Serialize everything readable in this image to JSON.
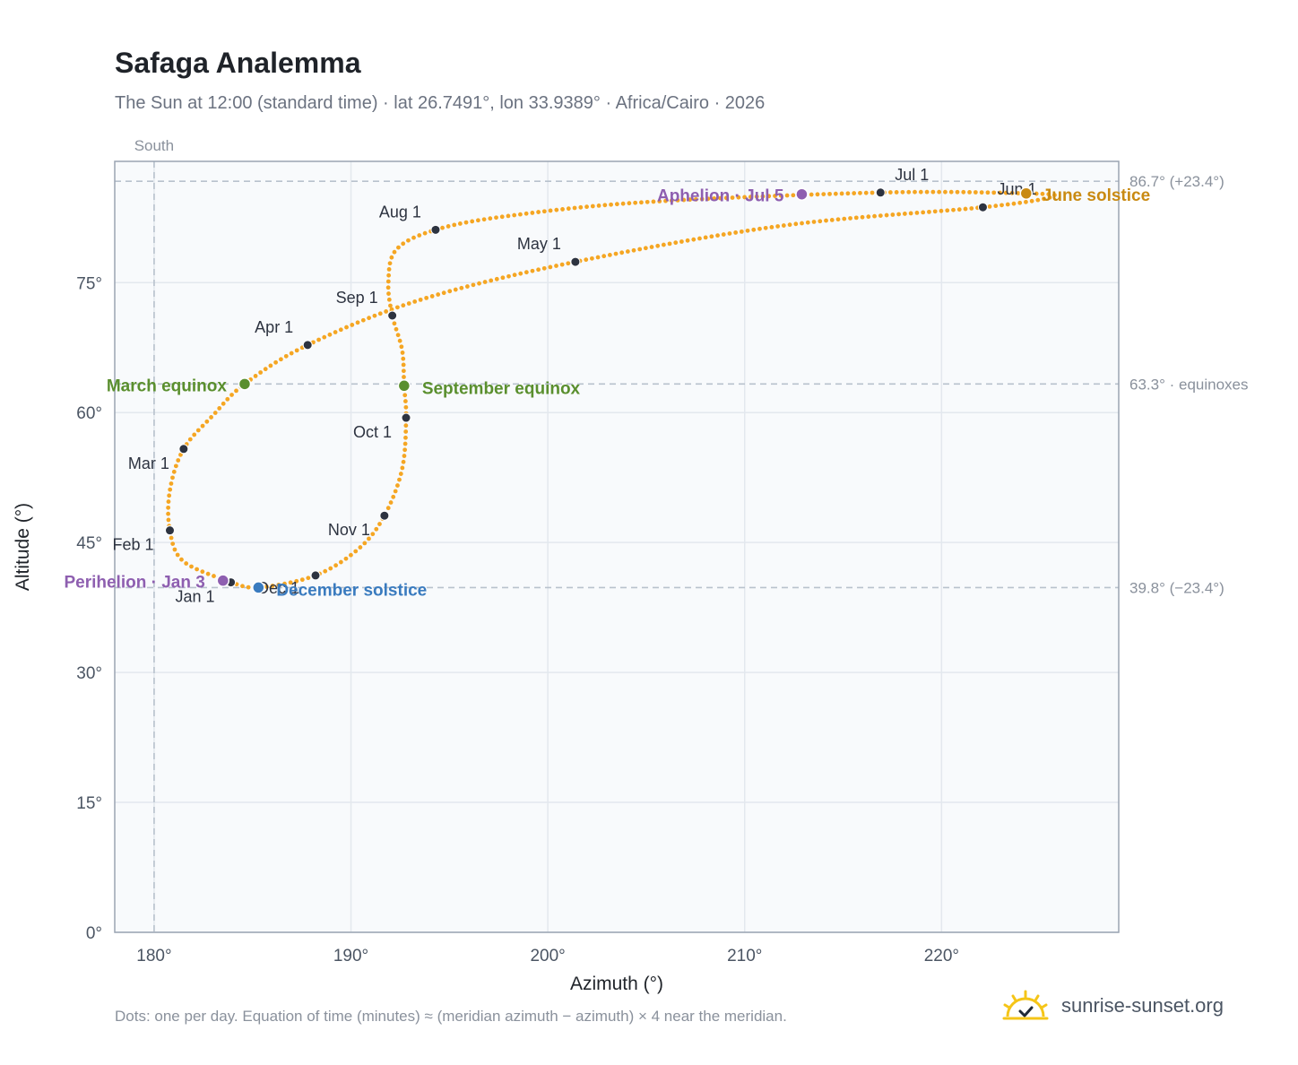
{
  "title": "Safaga Analemma",
  "subtitle": "The Sun at 12:00 (standard time) · lat 26.7491°, lon 33.9389° · Africa/Cairo · 2026",
  "footnote": "Dots: one per day. Equation of time (minutes) ≈ (meridian azimuth − azimuth) × 4 near the meridian.",
  "brand": {
    "name": "sunrise-sunset.org",
    "icon": "sun-logo-icon"
  },
  "colors": {
    "curve": "#f5a623",
    "month_dot": "#2d3340",
    "equinox": "#5a8f2e",
    "june_solstice": "#c98a12",
    "december_solstice": "#3a7bbf",
    "apsis": "#8e5fb0",
    "plot_bg": "#f8fafc",
    "grid": "#e3e8ee",
    "ref_line": "#b8c2cd",
    "axis_text": "#4b5563"
  },
  "chart_data": {
    "type": "scatter",
    "title": "Safaga Analemma",
    "xlabel": "Azimuth (°)",
    "ylabel": "Altitude (°)",
    "xlim": [
      178,
      229
    ],
    "ylim": [
      0,
      89
    ],
    "x_ticks": [
      180,
      190,
      200,
      210,
      220
    ],
    "x_tick_labels": [
      "180°",
      "190°",
      "200°",
      "210°",
      "220°"
    ],
    "y_ticks": [
      0,
      15,
      30,
      45,
      60,
      75
    ],
    "y_tick_labels": [
      "0°",
      "15°",
      "30°",
      "45°",
      "60°",
      "75°"
    ],
    "grid": true,
    "path_months": [
      {
        "label": "Jan 1",
        "az": 183.9,
        "alt": 40.4
      },
      {
        "label": "Feb 1",
        "az": 180.8,
        "alt": 46.4
      },
      {
        "label": "Mar 1",
        "az": 181.5,
        "alt": 55.8
      },
      {
        "label": "Apr 1",
        "az": 187.8,
        "alt": 67.8
      },
      {
        "label": "May 1",
        "az": 201.4,
        "alt": 77.4
      },
      {
        "label": "Jun 1",
        "az": 222.1,
        "alt": 83.7
      },
      {
        "label": "Jul 1",
        "az": 216.9,
        "alt": 85.4
      },
      {
        "label": "Aug 1",
        "az": 194.3,
        "alt": 81.1
      },
      {
        "label": "Sep 1",
        "az": 192.1,
        "alt": 71.2
      },
      {
        "label": "Oct 1",
        "az": 192.8,
        "alt": 59.4
      },
      {
        "label": "Nov 1",
        "az": 191.7,
        "alt": 48.1
      },
      {
        "label": "Dec 1",
        "az": 188.2,
        "alt": 41.2
      }
    ],
    "events": [
      {
        "label": "March equinox",
        "az": 184.6,
        "alt": 63.3,
        "color_key": "equinox"
      },
      {
        "label": "September equinox",
        "az": 192.7,
        "alt": 63.1,
        "color_key": "equinox"
      },
      {
        "label": "June solstice",
        "az": 224.3,
        "alt": 85.3,
        "color_key": "june_solstice"
      },
      {
        "label": "December solstice",
        "az": 185.3,
        "alt": 39.8,
        "color_key": "december_solstice"
      },
      {
        "label": "Perihelion · Jan 3",
        "az": 183.5,
        "alt": 40.6,
        "color_key": "apsis"
      },
      {
        "label": "Aphelion · Jul 5",
        "az": 212.9,
        "alt": 85.2,
        "color_key": "apsis"
      }
    ],
    "reference_lines": [
      {
        "axis": "y",
        "value": 86.7,
        "label": "86.7° (+23.4°)"
      },
      {
        "axis": "y",
        "value": 63.3,
        "label": "63.3° · equinoxes"
      },
      {
        "axis": "y",
        "value": 39.8,
        "label": "39.8° (−23.4°)"
      },
      {
        "axis": "x",
        "value": 180,
        "label": "South"
      }
    ],
    "curve_keypoints": [
      [
        183.9,
        40.4
      ],
      [
        181.5,
        42.8
      ],
      [
        180.8,
        46.4
      ],
      [
        180.8,
        51.0
      ],
      [
        181.5,
        55.8
      ],
      [
        183.0,
        59.7
      ],
      [
        184.6,
        63.3
      ],
      [
        187.8,
        67.8
      ],
      [
        193.5,
        73.0
      ],
      [
        201.4,
        77.4
      ],
      [
        212.0,
        81.6
      ],
      [
        222.1,
        83.7
      ],
      [
        225.6,
        84.9
      ],
      [
        224.3,
        85.3
      ],
      [
        216.9,
        85.4
      ],
      [
        205.0,
        84.3
      ],
      [
        198.0,
        82.7
      ],
      [
        194.3,
        81.1
      ],
      [
        192.3,
        78.8
      ],
      [
        191.9,
        75.0
      ],
      [
        192.1,
        71.2
      ],
      [
        192.6,
        67.2
      ],
      [
        192.7,
        63.1
      ],
      [
        192.8,
        59.4
      ],
      [
        192.6,
        53.5
      ],
      [
        191.7,
        48.1
      ],
      [
        190.4,
        44.3
      ],
      [
        188.2,
        41.2
      ],
      [
        185.3,
        39.8
      ],
      [
        183.9,
        40.4
      ]
    ]
  }
}
